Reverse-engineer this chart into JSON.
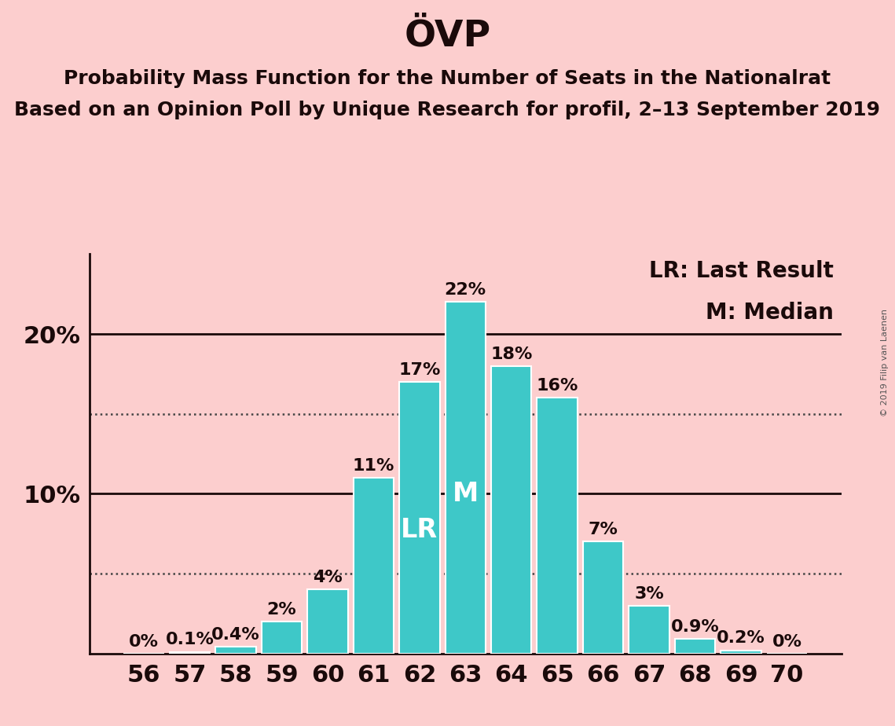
{
  "title": "ÖVP",
  "subtitle1": "Probability Mass Function for the Number of Seats in the Nationalrat",
  "subtitle2": "Based on an Opinion Poll by Unique Research for profil, 2–13 September 2019",
  "categories": [
    56,
    57,
    58,
    59,
    60,
    61,
    62,
    63,
    64,
    65,
    66,
    67,
    68,
    69,
    70
  ],
  "values": [
    0.0,
    0.1,
    0.4,
    2.0,
    4.0,
    11.0,
    17.0,
    22.0,
    18.0,
    16.0,
    7.0,
    3.0,
    0.9,
    0.2,
    0.0
  ],
  "labels": [
    "0%",
    "0.1%",
    "0.4%",
    "2%",
    "4%",
    "11%",
    "17%",
    "22%",
    "18%",
    "16%",
    "7%",
    "3%",
    "0.9%",
    "0.2%",
    "0%"
  ],
  "bar_color": "#3ec8c8",
  "background_color": "#fccece",
  "text_color": "#1a0a0a",
  "lr_seat": 62,
  "median_seat": 63,
  "lr_label": "LR",
  "median_label": "M",
  "legend_lr": "LR: Last Result",
  "legend_m": "M: Median",
  "watermark": "© 2019 Filip van Laenen",
  "dotted_lines": [
    5.0,
    15.0
  ],
  "solid_lines": [
    10.0,
    20.0
  ],
  "ylim": [
    0,
    25
  ],
  "title_fontsize": 34,
  "subtitle_fontsize": 18,
  "axis_tick_fontsize": 22,
  "bar_label_fontsize": 16,
  "legend_fontsize": 20,
  "bar_inlabel_fontsize": 24,
  "watermark_fontsize": 8
}
